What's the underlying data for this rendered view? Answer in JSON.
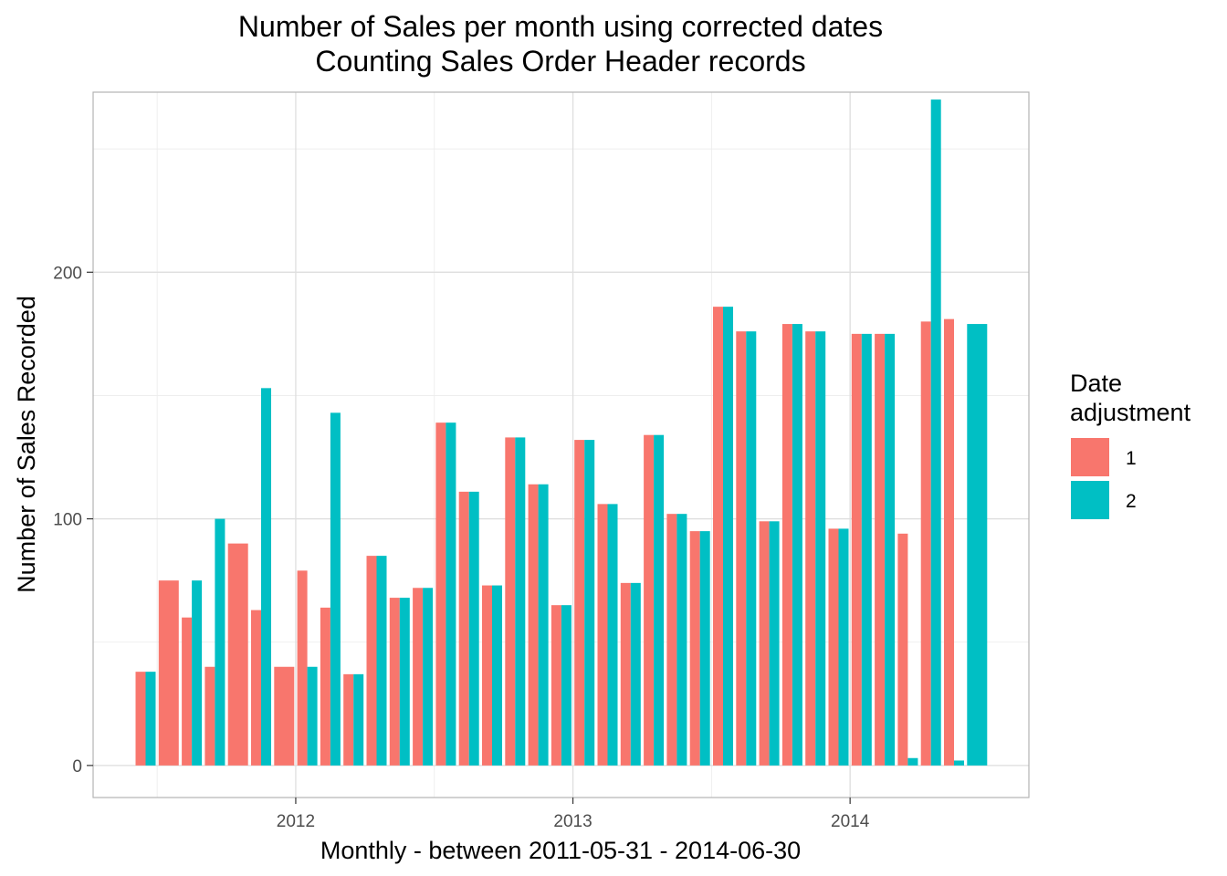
{
  "chart_data": {
    "type": "bar",
    "title": "Number of Sales per month using corrected dates",
    "subtitle": "Counting Sales Order Header records",
    "xlabel": "Monthly - between 2011-05-31 - 2014-06-30",
    "ylabel": "Number of Sales Recorded",
    "ylim": [
      -13,
      273
    ],
    "y_ticks": [
      0,
      100,
      200
    ],
    "y_tick_labels": [
      "0",
      "100",
      "200"
    ],
    "x_ticks": [
      "2012",
      "2013",
      "2014"
    ],
    "grid": true,
    "legend": {
      "title_lines": [
        "Date",
        "adjustment"
      ],
      "position": "right",
      "entries": [
        {
          "label": "1",
          "color": "#F8766D"
        },
        {
          "label": "2",
          "color": "#00BFC4"
        }
      ]
    },
    "categories": [
      "2011-06",
      "2011-07",
      "2011-08",
      "2011-09",
      "2011-10",
      "2011-11",
      "2011-12",
      "2012-01",
      "2012-02",
      "2012-03",
      "2012-04",
      "2012-05",
      "2012-06",
      "2012-07",
      "2012-08",
      "2012-09",
      "2012-10",
      "2012-11",
      "2012-12",
      "2013-01",
      "2013-02",
      "2013-03",
      "2013-04",
      "2013-05",
      "2013-06",
      "2013-07",
      "2013-08",
      "2013-09",
      "2013-10",
      "2013-11",
      "2013-12",
      "2014-01",
      "2014-02",
      "2014-03",
      "2014-04",
      "2014-05",
      "2014-06"
    ],
    "series": [
      {
        "name": "1",
        "color": "#F8766D",
        "values": [
          38,
          75,
          60,
          40,
          90,
          63,
          40,
          79,
          64,
          37,
          85,
          68,
          72,
          139,
          111,
          73,
          133,
          114,
          65,
          132,
          106,
          74,
          134,
          102,
          95,
          186,
          176,
          99,
          179,
          176,
          96,
          175,
          175,
          94,
          180,
          181,
          null
        ]
      },
      {
        "name": "2",
        "color": "#00BFC4",
        "values": [
          38,
          null,
          75,
          100,
          null,
          153,
          null,
          40,
          143,
          37,
          85,
          68,
          72,
          139,
          111,
          73,
          133,
          114,
          65,
          132,
          106,
          74,
          134,
          102,
          95,
          186,
          176,
          99,
          179,
          176,
          96,
          175,
          175,
          3,
          270,
          2,
          179
        ]
      }
    ]
  }
}
